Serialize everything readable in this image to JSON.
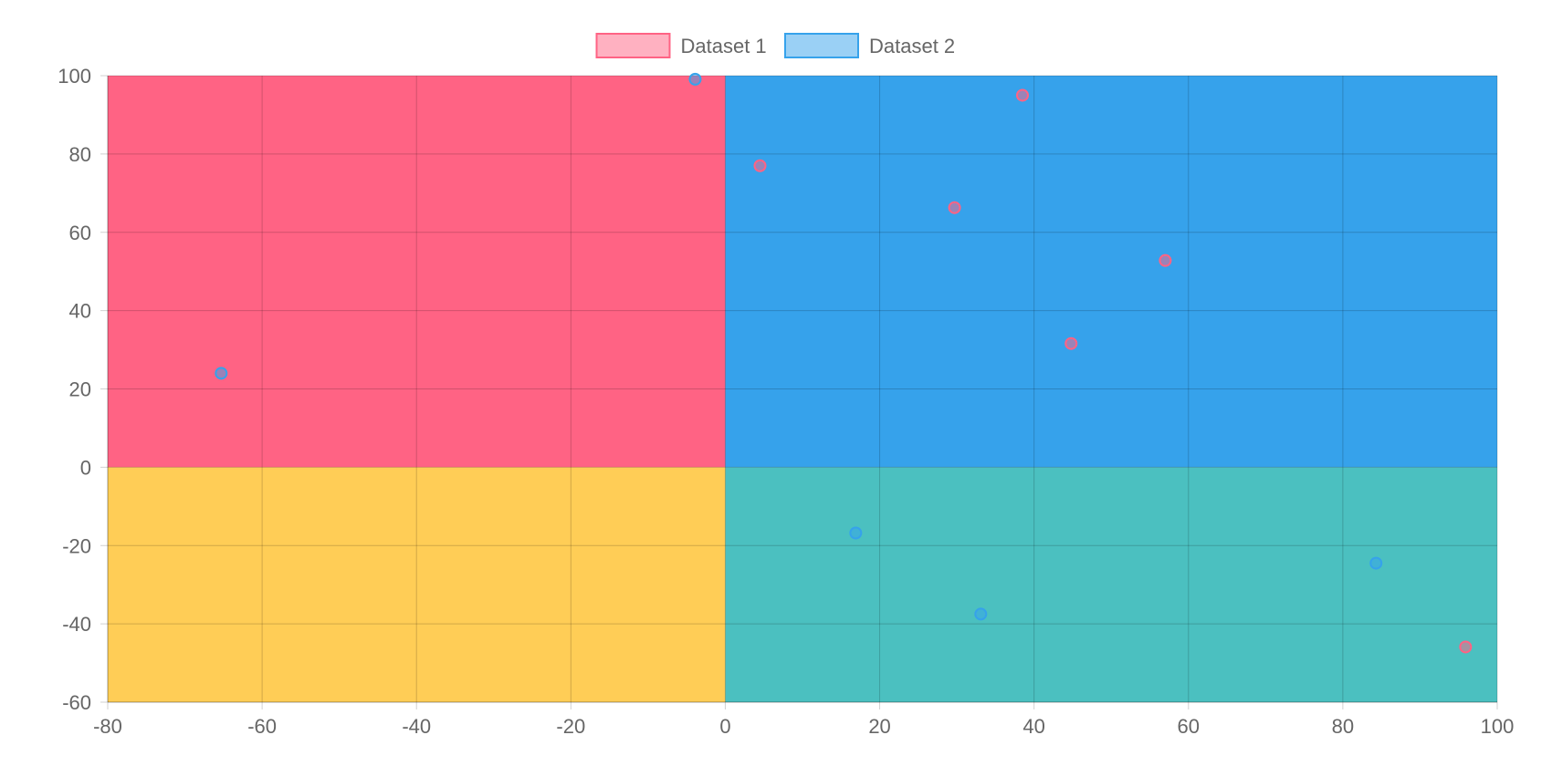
{
  "chart_data": {
    "type": "scatter",
    "title": "",
    "xlabel": "",
    "ylabel": "",
    "xlim": [
      -80,
      100
    ],
    "ylim": [
      -60,
      100
    ],
    "x_ticks": [
      -80,
      -60,
      -40,
      -20,
      0,
      20,
      40,
      60,
      80,
      100
    ],
    "y_ticks": [
      100,
      80,
      60,
      40,
      20,
      0,
      -20,
      -40,
      -60
    ],
    "grid": true,
    "legend_position": "top-center",
    "quadrants": [
      {
        "name": "top-left",
        "x": [
          -80,
          0
        ],
        "y": [
          0,
          100
        ],
        "color": "#ff6384"
      },
      {
        "name": "top-right",
        "x": [
          0,
          100
        ],
        "y": [
          0,
          100
        ],
        "color": "#36a2eb"
      },
      {
        "name": "bottom-left",
        "x": [
          -80,
          0
        ],
        "y": [
          -60,
          0
        ],
        "color": "#ffcd56"
      },
      {
        "name": "bottom-right",
        "x": [
          0,
          100
        ],
        "y": [
          -60,
          0
        ],
        "color": "#4bc0c0"
      }
    ],
    "series": [
      {
        "name": "Dataset 1",
        "border_color": "#ff6384",
        "fill_color": "rgba(255, 99, 132, 0.5)",
        "points": [
          {
            "x": 4.5,
            "y": 77
          },
          {
            "x": 29.7,
            "y": 66.3
          },
          {
            "x": 38.5,
            "y": 95
          },
          {
            "x": 44.8,
            "y": 31.6
          },
          {
            "x": 57,
            "y": 52.8
          },
          {
            "x": 95.9,
            "y": -45.9
          }
        ]
      },
      {
        "name": "Dataset 2",
        "border_color": "#36a2eb",
        "fill_color": "rgba(54, 162, 235, 0.5)",
        "points": [
          {
            "x": -65.3,
            "y": 24
          },
          {
            "x": -3.9,
            "y": 99.1
          },
          {
            "x": 16.9,
            "y": -16.8
          },
          {
            "x": 33.1,
            "y": -37.5
          },
          {
            "x": 84.3,
            "y": -24.5
          }
        ]
      }
    ]
  }
}
